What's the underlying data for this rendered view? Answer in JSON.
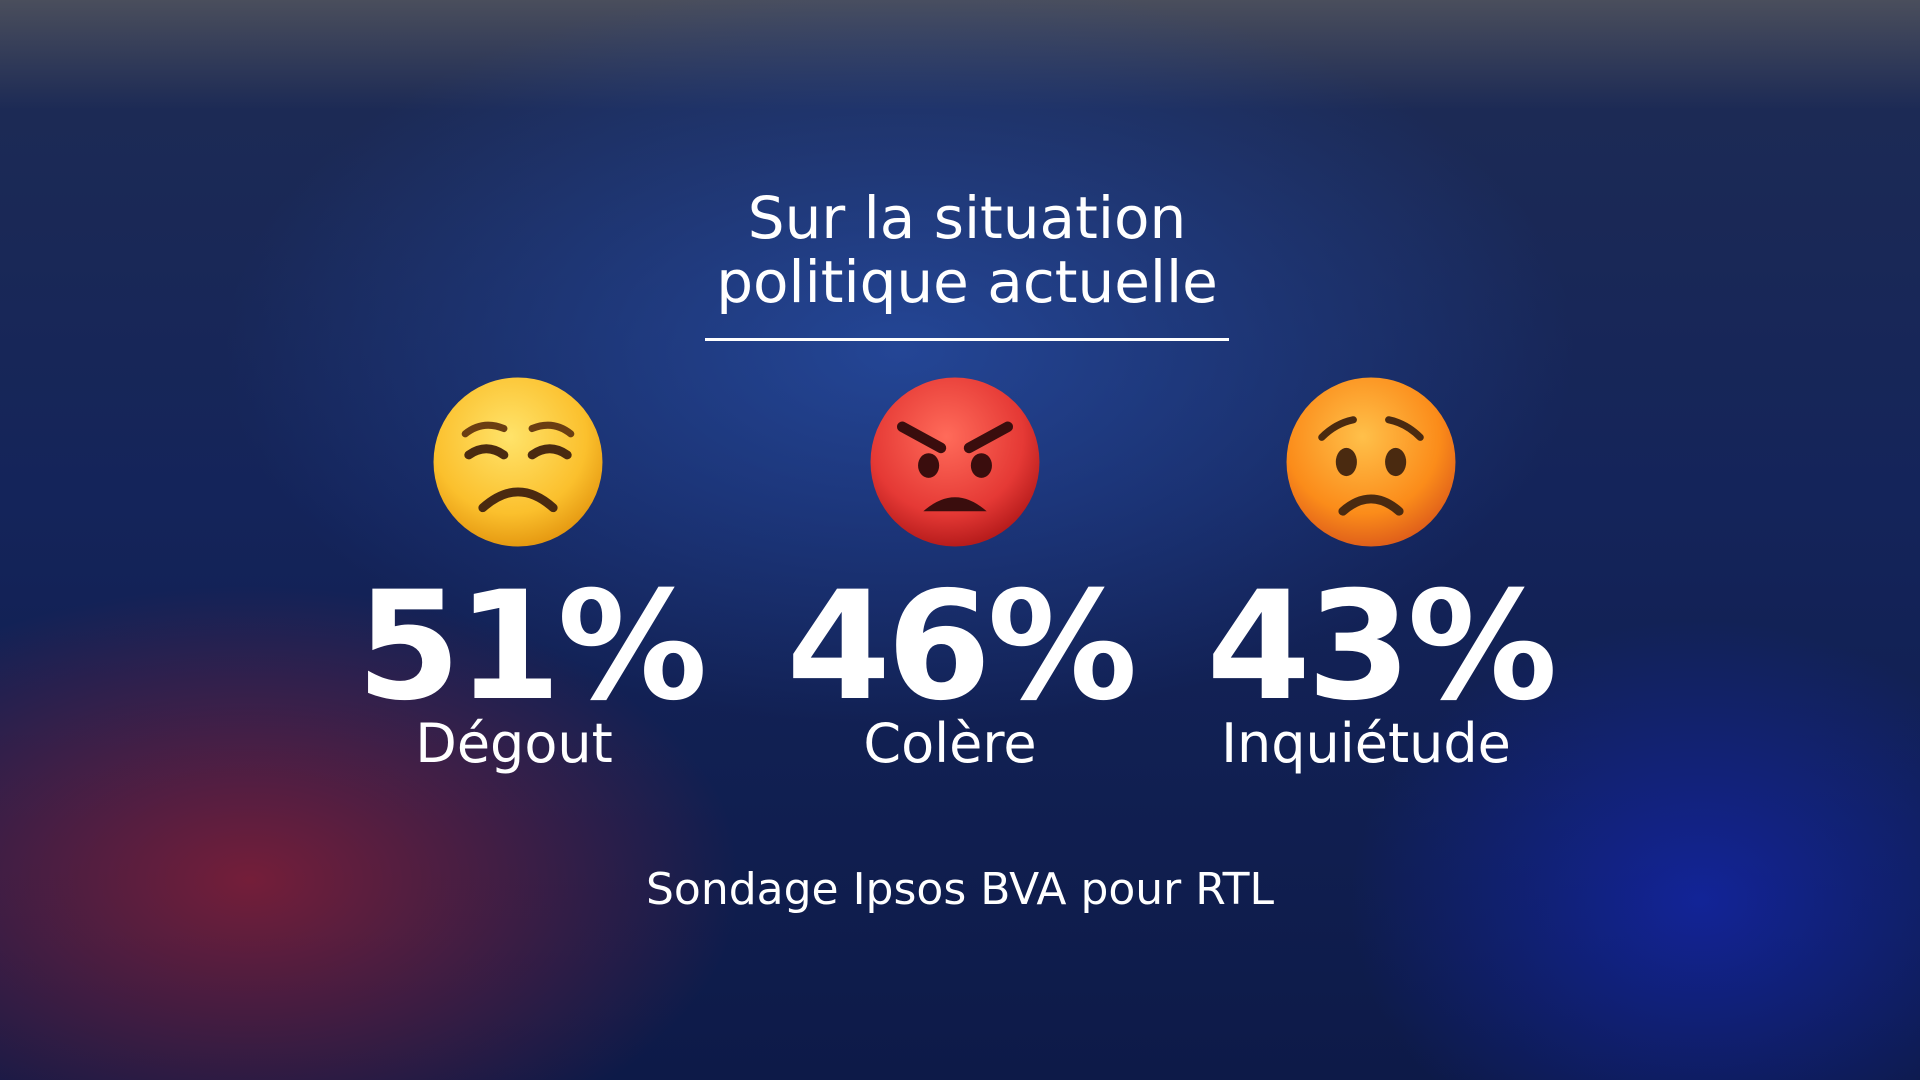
{
  "title_lines": [
    "Sur la situation",
    "politique actuelle"
  ],
  "items": [
    {
      "value": "51%",
      "label": "Dégout"
    },
    {
      "value": "46%",
      "label": "Colère"
    },
    {
      "value": "43%",
      "label": "Inquiétude"
    }
  ],
  "source": "Sondage Ipsos BVA pour RTL"
}
